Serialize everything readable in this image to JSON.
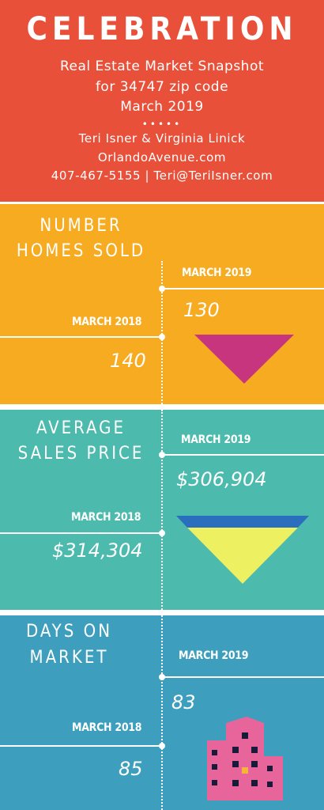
{
  "header": {
    "title": "CELEBRATION",
    "subtitle_line1": "Real Estate Market Snapshot",
    "subtitle_line2": "for 34747 zip code",
    "subtitle_line3": "March 2019",
    "dots": "•••••",
    "agents": "Teri Isner & Virginia Linick",
    "website": "OrlandoAvenue.com",
    "contact": "407-467-5155 | Teri@TeriIsner.com"
  },
  "colors": {
    "header_bg": "#e8503a",
    "homes_sold_bg": "#f7ab20",
    "avg_price_bg": "#4cbaad",
    "days_market_bg": "#3d9fbd",
    "triangle_magenta": "#c8357f",
    "triangle_yellow": "#ecf061",
    "stripe_blue": "#2a6fbd",
    "building_pink": "#e7659a"
  },
  "homes_sold": {
    "heading_line1": "NUMBER",
    "heading_line2": "HOMES SOLD",
    "label_2019": "MARCH 2019",
    "value_2019": "130",
    "label_2018": "MARCH 2018",
    "value_2018": "140",
    "icon": "down-triangle-icon"
  },
  "avg_price": {
    "heading_line1": "AVERAGE",
    "heading_line2": "SALES PRICE",
    "label_2019": "MARCH 2019",
    "value_2019": "$306,904",
    "label_2018": "MARCH 2018",
    "value_2018": "$314,304",
    "icon": "down-triangle-icon"
  },
  "days_market": {
    "heading_line1": "DAYS ON",
    "heading_line2": "MARKET",
    "label_2019": "MARCH 2019",
    "value_2019": "83",
    "label_2018": "MARCH 2018",
    "value_2018": "85",
    "icon": "building-icon"
  }
}
